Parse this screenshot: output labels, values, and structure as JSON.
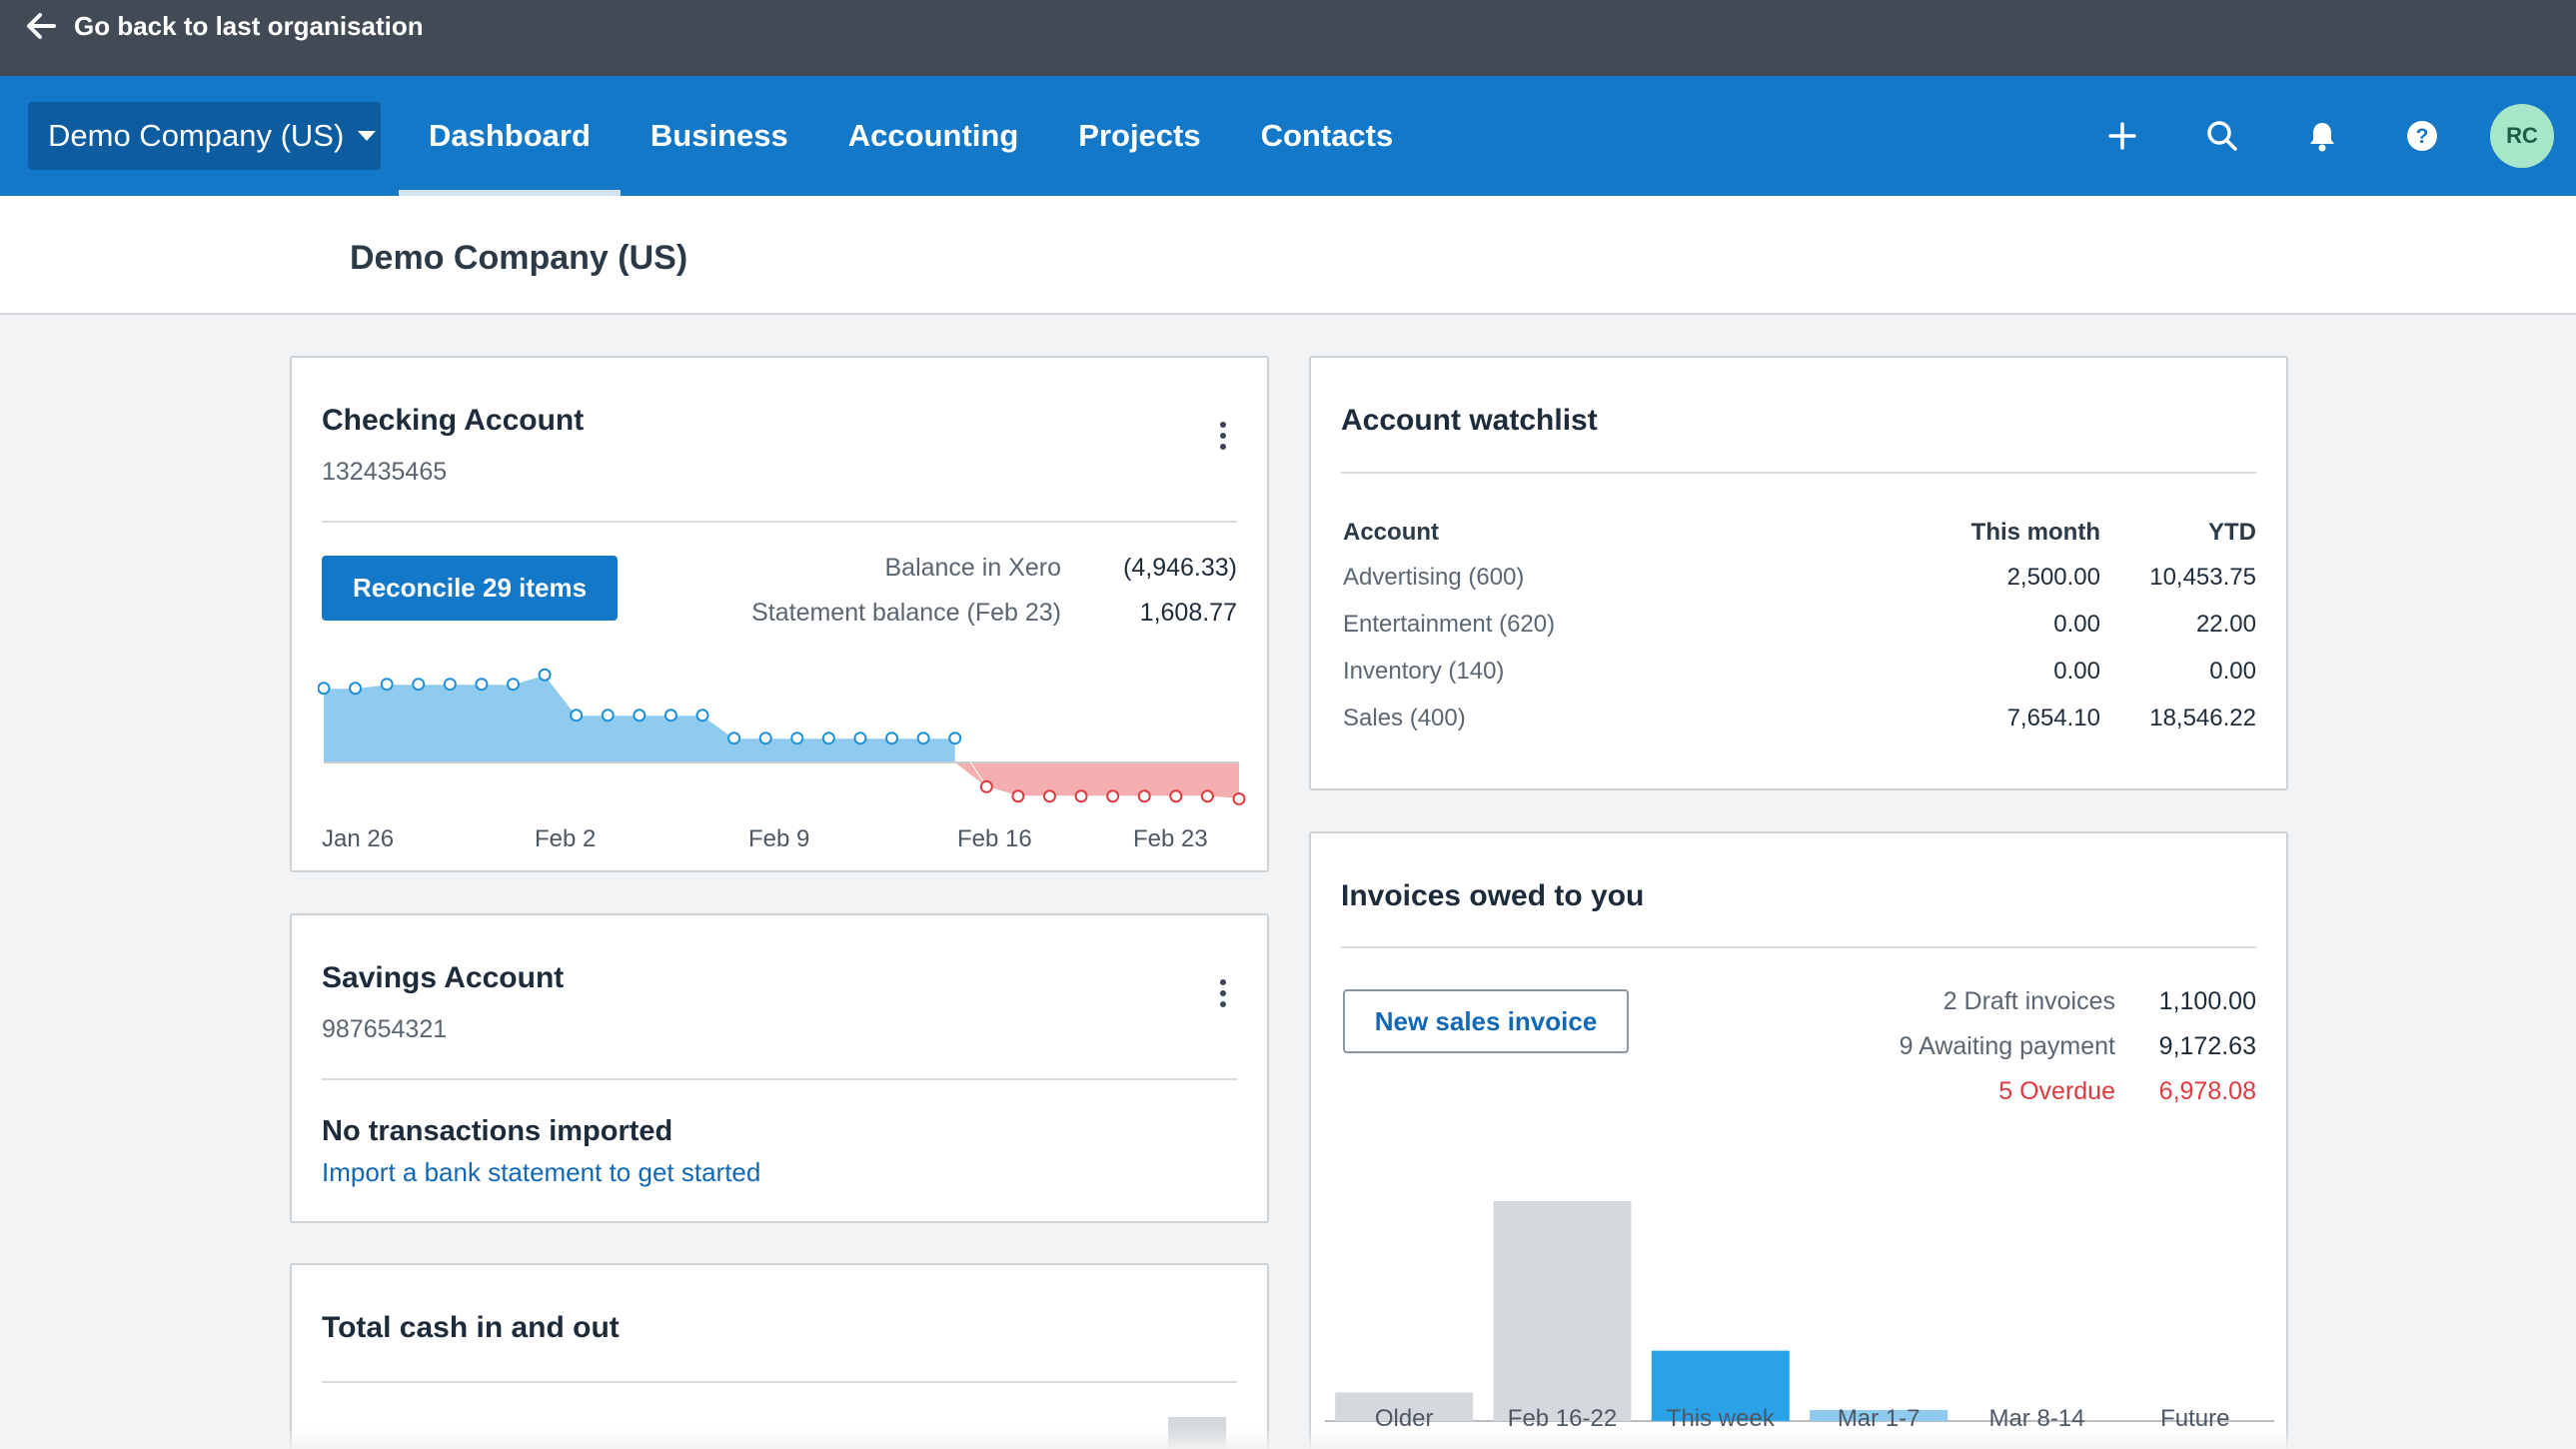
{
  "topbar": {
    "back_label": "Go back to last organisation"
  },
  "nav": {
    "org_name": "Demo Company (US)",
    "tabs": [
      {
        "label": "Dashboard",
        "active": true
      },
      {
        "label": "Business",
        "active": false
      },
      {
        "label": "Accounting",
        "active": false
      },
      {
        "label": "Projects",
        "active": false
      },
      {
        "label": "Contacts",
        "active": false
      }
    ],
    "icons": [
      "plus-icon",
      "search-icon",
      "bell-icon",
      "help-icon"
    ],
    "avatar_initials": "RC"
  },
  "page": {
    "title": "Demo Company (US)"
  },
  "checking": {
    "title": "Checking Account",
    "number": "132435465",
    "reconcile_label": "Reconcile 29 items",
    "balance_label": "Balance in Xero",
    "balance_value": "(4,946.33)",
    "statement_label": "Statement balance (Feb 23)",
    "statement_value": "1,608.77",
    "chart_data": {
      "type": "area",
      "x_tick_labels": [
        "Jan 26",
        "Feb 2",
        "Feb 9",
        "Feb 16",
        "Feb 23"
      ],
      "positive_color": "#8fcbef",
      "negative_color": "#f4aeb0",
      "relative_levels": [
        0.55,
        0.55,
        0.58,
        0.58,
        0.58,
        0.58,
        0.58,
        0.65,
        0.35,
        0.35,
        0.35,
        0.35,
        0.35,
        0.18,
        0.18,
        0.18,
        0.18,
        0.18,
        0.18,
        0.18,
        0.18,
        -0.18,
        -0.25,
        -0.25,
        -0.25,
        -0.25,
        -0.25,
        -0.25,
        -0.25,
        -0.27
      ]
    }
  },
  "savings": {
    "title": "Savings Account",
    "number": "987654321",
    "empty_title": "No transactions imported",
    "empty_link": "Import a bank statement to get started"
  },
  "cash": {
    "title": "Total cash in and out"
  },
  "watchlist": {
    "title": "Account watchlist",
    "headers": [
      "Account",
      "This month",
      "YTD"
    ],
    "rows": [
      {
        "account": "Advertising (600)",
        "month": "2,500.00",
        "ytd": "10,453.75"
      },
      {
        "account": "Entertainment (620)",
        "month": "0.00",
        "ytd": "22.00"
      },
      {
        "account": "Inventory (140)",
        "month": "0.00",
        "ytd": "0.00"
      },
      {
        "account": "Sales (400)",
        "month": "7,654.10",
        "ytd": "18,546.22"
      }
    ]
  },
  "invoices": {
    "title": "Invoices owed to you",
    "new_label": "New sales invoice",
    "draft_label": "2 Draft invoices",
    "draft_value": "1,100.00",
    "awaiting_label": "9 Awaiting payment",
    "awaiting_value": "9,172.63",
    "overdue_label": "5 Overdue",
    "overdue_value": "6,978.08",
    "chart_data": {
      "type": "bar",
      "categories": [
        "Older",
        "Feb 16-22",
        "This week",
        "Mar 1-7",
        "Mar 8-14",
        "Future"
      ],
      "relative_values": [
        0.13,
        1.0,
        0.32,
        0.05,
        0,
        0
      ],
      "colors": [
        "#d5d8dc",
        "#d5d8dc",
        "#2aa2e8",
        "#8fcbef",
        "#d5d8dc",
        "#d5d8dc"
      ]
    }
  }
}
